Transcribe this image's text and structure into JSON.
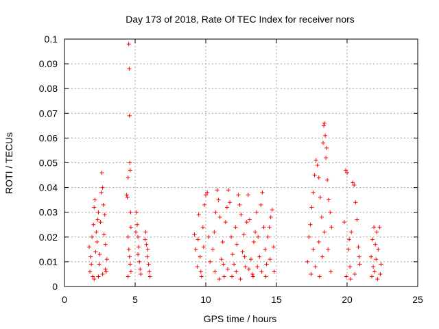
{
  "chart_data": {
    "type": "scatter",
    "title": "Day 173 of 2018, Rate Of TEC Index for receiver nors",
    "xlabel": "GPS time / hours",
    "ylabel": "ROTI / TECUs",
    "xlim": [
      0,
      25
    ],
    "ylim": [
      0,
      0.1
    ],
    "xticks": [
      0,
      5,
      10,
      15,
      20,
      25
    ],
    "xtick_labels": [
      "0",
      "5",
      "10",
      "15",
      "20",
      "25"
    ],
    "yticks": [
      0,
      0.01,
      0.02,
      0.03,
      0.04,
      0.05,
      0.06,
      0.07,
      0.08,
      0.09,
      0.1
    ],
    "ytick_labels": [
      "0",
      "0.01",
      "0.02",
      "0.03",
      "0.04",
      "0.05",
      "0.06",
      "0.07",
      "0.08",
      "0.09",
      "0.1"
    ],
    "grid": true,
    "marker": "+",
    "marker_color": "#ff0000",
    "series": [
      {
        "name": "ROTI",
        "points": [
          [
            1.75,
            0.016
          ],
          [
            1.8,
            0.006
          ],
          [
            1.85,
            0.012
          ],
          [
            1.9,
            0.009
          ],
          [
            1.95,
            0.02
          ],
          [
            2.0,
            0.004
          ],
          [
            2.05,
            0.025
          ],
          [
            2.1,
            0.032
          ],
          [
            2.15,
            0.035
          ],
          [
            2.2,
            0.014
          ],
          [
            2.25,
            0.022
          ],
          [
            2.3,
            0.018
          ],
          [
            2.35,
            0.027
          ],
          [
            2.4,
            0.03
          ],
          [
            2.45,
            0.009
          ],
          [
            2.5,
            0.013
          ],
          [
            2.55,
            0.026
          ],
          [
            2.6,
            0.038
          ],
          [
            2.65,
            0.046
          ],
          [
            2.7,
            0.04
          ],
          [
            2.75,
            0.033
          ],
          [
            2.8,
            0.021
          ],
          [
            2.85,
            0.029
          ],
          [
            2.9,
            0.017
          ],
          [
            2.95,
            0.006
          ],
          [
            3.0,
            0.011
          ],
          [
            2.1,
            0.003
          ],
          [
            2.4,
            0.004
          ],
          [
            2.7,
            0.005
          ],
          [
            2.9,
            0.007
          ],
          [
            4.4,
            0.037
          ],
          [
            4.45,
            0.036
          ],
          [
            4.5,
            0.044
          ],
          [
            4.55,
            0.098
          ],
          [
            4.58,
            0.088
          ],
          [
            4.6,
            0.069
          ],
          [
            4.62,
            0.05
          ],
          [
            4.65,
            0.047
          ],
          [
            4.68,
            0.03
          ],
          [
            4.7,
            0.024
          ],
          [
            4.5,
            0.02
          ],
          [
            4.55,
            0.015
          ],
          [
            4.6,
            0.012
          ],
          [
            4.65,
            0.009
          ],
          [
            4.7,
            0.006
          ],
          [
            4.5,
            0.004
          ],
          [
            5.05,
            0.022
          ],
          [
            5.1,
            0.03
          ],
          [
            5.15,
            0.025
          ],
          [
            5.2,
            0.02
          ],
          [
            5.25,
            0.016
          ],
          [
            5.3,
            0.01
          ],
          [
            5.35,
            0.007
          ],
          [
            5.4,
            0.005
          ],
          [
            5.2,
            0.013
          ],
          [
            5.7,
            0.019
          ],
          [
            5.75,
            0.022
          ],
          [
            5.8,
            0.017
          ],
          [
            5.85,
            0.012
          ],
          [
            5.9,
            0.015
          ],
          [
            5.95,
            0.009
          ],
          [
            6.0,
            0.006
          ],
          [
            6.05,
            0.004
          ],
          [
            9.2,
            0.021
          ],
          [
            9.3,
            0.015
          ],
          [
            9.4,
            0.008
          ],
          [
            9.5,
            0.029
          ],
          [
            9.6,
            0.012
          ],
          [
            9.7,
            0.004
          ],
          [
            9.8,
            0.024
          ],
          [
            9.9,
            0.033
          ],
          [
            10.0,
            0.037
          ],
          [
            10.1,
            0.038
          ],
          [
            10.2,
            0.02
          ],
          [
            10.3,
            0.01
          ],
          [
            9.45,
            0.019
          ],
          [
            9.65,
            0.006
          ],
          [
            9.85,
            0.016
          ],
          [
            10.5,
            0.015
          ],
          [
            10.6,
            0.022
          ],
          [
            10.7,
            0.03
          ],
          [
            10.8,
            0.039
          ],
          [
            10.9,
            0.035
          ],
          [
            11.0,
            0.028
          ],
          [
            11.1,
            0.011
          ],
          [
            11.2,
            0.018
          ],
          [
            11.3,
            0.004
          ],
          [
            11.4,
            0.026
          ],
          [
            11.5,
            0.032
          ],
          [
            11.6,
            0.039
          ],
          [
            11.7,
            0.034
          ],
          [
            11.8,
            0.02
          ],
          [
            11.9,
            0.013
          ],
          [
            12.0,
            0.009
          ],
          [
            12.1,
            0.024
          ],
          [
            12.2,
            0.017
          ],
          [
            12.3,
            0.037
          ],
          [
            12.4,
            0.033
          ],
          [
            12.5,
            0.029
          ],
          [
            12.6,
            0.014
          ],
          [
            12.7,
            0.021
          ],
          [
            12.8,
            0.008
          ],
          [
            12.9,
            0.026
          ],
          [
            13.0,
            0.037
          ],
          [
            13.1,
            0.027
          ],
          [
            13.2,
            0.011
          ],
          [
            13.3,
            0.005
          ],
          [
            13.4,
            0.018
          ],
          [
            13.5,
            0.022
          ],
          [
            13.6,
            0.03
          ],
          [
            13.7,
            0.02
          ],
          [
            13.8,
            0.012
          ],
          [
            13.9,
            0.033
          ],
          [
            14.0,
            0.038
          ],
          [
            14.1,
            0.024
          ],
          [
            14.2,
            0.015
          ],
          [
            14.3,
            0.009
          ],
          [
            14.4,
            0.02
          ],
          [
            14.5,
            0.024
          ],
          [
            14.6,
            0.028
          ],
          [
            14.7,
            0.031
          ],
          [
            14.8,
            0.016
          ],
          [
            14.85,
            0.006
          ],
          [
            10.65,
            0.006
          ],
          [
            10.95,
            0.003
          ],
          [
            11.25,
            0.009
          ],
          [
            11.55,
            0.007
          ],
          [
            11.85,
            0.004
          ],
          [
            12.15,
            0.006
          ],
          [
            12.45,
            0.003
          ],
          [
            12.75,
            0.012
          ],
          [
            13.05,
            0.007
          ],
          [
            13.35,
            0.004
          ],
          [
            13.65,
            0.008
          ],
          [
            13.95,
            0.006
          ],
          [
            14.25,
            0.004
          ],
          [
            14.55,
            0.011
          ],
          [
            17.2,
            0.01
          ],
          [
            17.3,
            0.02
          ],
          [
            17.4,
            0.025
          ],
          [
            17.5,
            0.032
          ],
          [
            17.6,
            0.038
          ],
          [
            17.7,
            0.045
          ],
          [
            17.8,
            0.051
          ],
          [
            17.9,
            0.049
          ],
          [
            18.0,
            0.044
          ],
          [
            18.1,
            0.036
          ],
          [
            18.2,
            0.028
          ],
          [
            18.3,
            0.058
          ],
          [
            18.35,
            0.065
          ],
          [
            18.4,
            0.066
          ],
          [
            18.45,
            0.061
          ],
          [
            18.5,
            0.052
          ],
          [
            18.55,
            0.056
          ],
          [
            18.6,
            0.043
          ],
          [
            18.7,
            0.035
          ],
          [
            18.8,
            0.03
          ],
          [
            18.9,
            0.024
          ],
          [
            17.45,
            0.005
          ],
          [
            17.75,
            0.008
          ],
          [
            18.05,
            0.004
          ],
          [
            18.25,
            0.012
          ],
          [
            18.65,
            0.015
          ],
          [
            18.85,
            0.006
          ],
          [
            17.6,
            0.015
          ],
          [
            18.0,
            0.018
          ],
          [
            18.4,
            0.022
          ],
          [
            19.8,
            0.026
          ],
          [
            19.9,
            0.047
          ],
          [
            20.0,
            0.046
          ],
          [
            20.1,
            0.015
          ],
          [
            20.2,
            0.008
          ],
          [
            20.3,
            0.022
          ],
          [
            20.4,
            0.042
          ],
          [
            20.5,
            0.041
          ],
          [
            20.6,
            0.034
          ],
          [
            20.7,
            0.027
          ],
          [
            20.8,
            0.016
          ],
          [
            20.9,
            0.009
          ],
          [
            19.95,
            0.004
          ],
          [
            20.25,
            0.003
          ],
          [
            20.55,
            0.005
          ],
          [
            20.85,
            0.012
          ],
          [
            20.15,
            0.019
          ],
          [
            21.7,
            0.012
          ],
          [
            21.8,
            0.019
          ],
          [
            21.9,
            0.024
          ],
          [
            22.0,
            0.017
          ],
          [
            22.1,
            0.022
          ],
          [
            22.2,
            0.015
          ],
          [
            22.3,
            0.024
          ],
          [
            22.4,
            0.009
          ],
          [
            21.75,
            0.004
          ],
          [
            21.95,
            0.006
          ],
          [
            22.15,
            0.003
          ],
          [
            22.35,
            0.005
          ],
          [
            22.05,
            0.011
          ],
          [
            21.85,
            0.008
          ]
        ]
      }
    ]
  }
}
